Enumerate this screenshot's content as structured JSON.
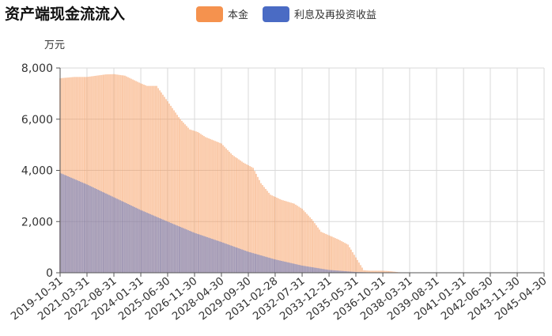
{
  "chart_data": {
    "type": "bar",
    "stacking": "overlay",
    "title": "资产端现金流流入",
    "ylabel": "万元",
    "ylim": [
      0,
      8000
    ],
    "yticks": [
      "0",
      "2,000",
      "4,000",
      "6,000",
      "8,000"
    ],
    "grid": true,
    "legend_position": "top",
    "x_tick_labels": [
      "2019-10-31",
      "2021-03-31",
      "2022-08-31",
      "2024-01-31",
      "2025-06-30",
      "2026-11-30",
      "2028-04-30",
      "2029-09-30",
      "2031-02-28",
      "2032-07-31",
      "2033-12-31",
      "2035-05-31",
      "2036-10-31",
      "2038-03-31",
      "2039-08-31",
      "2041-01-31",
      "2042-06-30",
      "2043-11-30",
      "2045-04-30"
    ],
    "x_tick_interval_months": 17,
    "x_range": [
      "2019-10-31",
      "2045-04-30"
    ],
    "series": [
      {
        "name": "本金",
        "color": "#F5924E",
        "breakpoints": [
          [
            "2019-10-31",
            7600
          ],
          [
            "2020-07-31",
            7650
          ],
          [
            "2021-03-31",
            7650
          ],
          [
            "2022-03-31",
            7750
          ],
          [
            "2022-08-31",
            7760
          ],
          [
            "2023-03-31",
            7700
          ],
          [
            "2024-01-31",
            7400
          ],
          [
            "2024-05-31",
            7300
          ],
          [
            "2024-11-30",
            7300
          ],
          [
            "2025-06-30",
            6700
          ],
          [
            "2026-02-28",
            6000
          ],
          [
            "2026-08-31",
            5600
          ],
          [
            "2027-01-31",
            5500
          ],
          [
            "2027-06-30",
            5300
          ],
          [
            "2028-04-30",
            5050
          ],
          [
            "2028-11-30",
            4600
          ],
          [
            "2029-06-30",
            4300
          ],
          [
            "2029-12-31",
            4100
          ],
          [
            "2030-05-31",
            3500
          ],
          [
            "2030-11-30",
            3050
          ],
          [
            "2031-06-30",
            2850
          ],
          [
            "2032-02-29",
            2700
          ],
          [
            "2032-07-31",
            2500
          ],
          [
            "2033-01-31",
            2100
          ],
          [
            "2033-07-31",
            1600
          ],
          [
            "2034-06-30",
            1300
          ],
          [
            "2034-12-31",
            1100
          ],
          [
            "2035-06-30",
            500
          ],
          [
            "2035-10-31",
            100
          ],
          [
            "2036-02-29",
            80
          ],
          [
            "2036-10-31",
            80
          ],
          [
            "2037-03-31",
            60
          ],
          [
            "2037-08-31",
            20
          ],
          [
            "2038-03-31",
            0
          ],
          [
            "2045-04-30",
            0
          ]
        ]
      },
      {
        "name": "利息及再投资收益",
        "color": "#4A6BC4",
        "breakpoints": [
          [
            "2019-10-31",
            3900
          ],
          [
            "2021-03-31",
            3450
          ],
          [
            "2022-08-31",
            2950
          ],
          [
            "2024-01-31",
            2450
          ],
          [
            "2025-06-30",
            2000
          ],
          [
            "2026-11-30",
            1560
          ],
          [
            "2028-04-30",
            1200
          ],
          [
            "2029-09-30",
            820
          ],
          [
            "2031-02-28",
            520
          ],
          [
            "2032-07-31",
            280
          ],
          [
            "2033-12-31",
            110
          ],
          [
            "2035-05-31",
            30
          ],
          [
            "2036-10-31",
            0
          ],
          [
            "2045-04-30",
            0
          ]
        ]
      }
    ]
  }
}
